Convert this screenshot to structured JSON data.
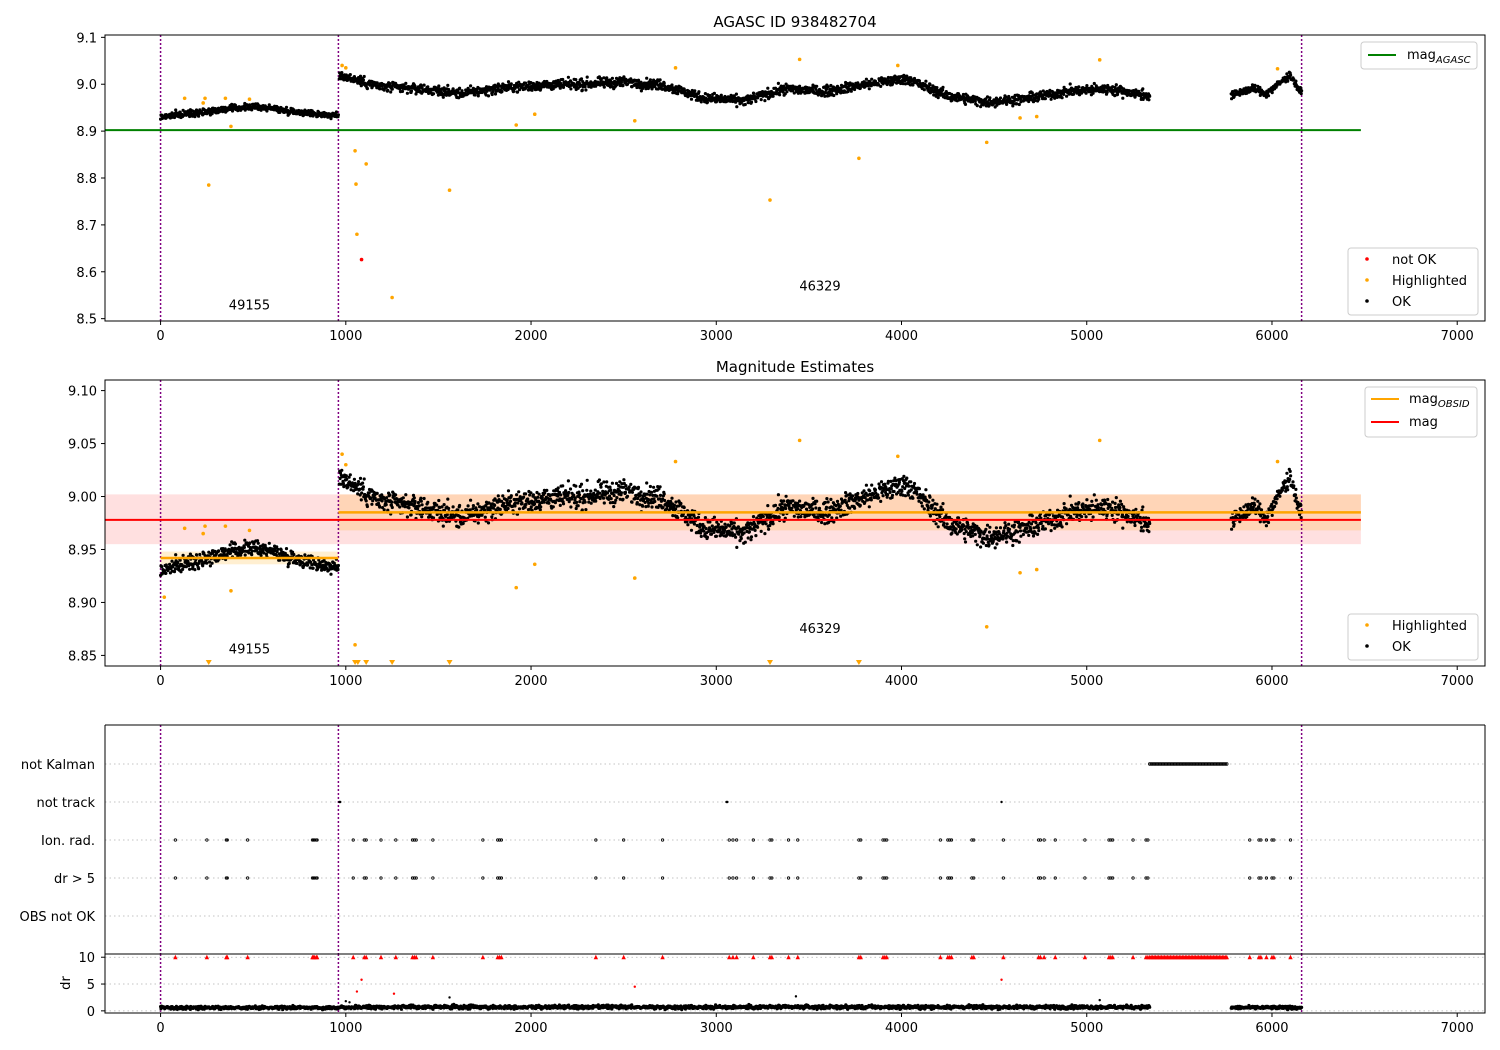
{
  "chart_data": [
    {
      "type": "scatter",
      "title": "AGASC ID 938482704",
      "xlim": [
        -300,
        7150
      ],
      "ylim": [
        8.495,
        9.105
      ],
      "xticks": [
        0,
        1000,
        2000,
        3000,
        4000,
        5000,
        6000,
        7000
      ],
      "yticks": [
        8.5,
        8.6,
        8.7,
        8.8,
        8.9,
        9.0,
        9.1
      ],
      "ytick_labels": [
        "8.5",
        "8.6",
        "8.7",
        "8.8",
        "8.9",
        "9.0",
        "9.1"
      ],
      "hline": {
        "name": "mag_AGASC",
        "y": 8.902,
        "x0": -300,
        "x1": 6480,
        "color": "#008000"
      },
      "obs_boundaries": [
        0,
        960,
        6160
      ],
      "obs_labels": [
        {
          "text": "49155",
          "x": 480,
          "y": 8.52
        },
        {
          "text": "46329",
          "x": 3560,
          "y": 8.56
        }
      ],
      "legend_top": {
        "label_main": "mag",
        "label_sub": "AGASC",
        "color": "#008000"
      },
      "legend_bottom": [
        {
          "label": "not OK",
          "color": "#ff0000"
        },
        {
          "label": "Highlighted",
          "color": "#ffa500"
        },
        {
          "label": "OK",
          "color": "#000000"
        }
      ],
      "ok_segments": [
        {
          "x0": 0,
          "x1": 960,
          "y": [
            8.93,
            8.935,
            8.94,
            8.944,
            8.948,
            8.952,
            8.95,
            8.944,
            8.94,
            8.936,
            8.932
          ],
          "noise": 0.011
        },
        {
          "x0": 965,
          "x1": 5340,
          "y": [
            9.02,
            8.995,
            8.99,
            8.98,
            8.992,
            8.998,
            9.0,
            9.005,
            8.998,
            8.97,
            8.965,
            8.99,
            8.985,
            9.0,
            9.012,
            8.975,
            8.962,
            8.97,
            8.985,
            8.99,
            8.975
          ],
          "noise": 0.017
        },
        {
          "x0": 5780,
          "x1": 6160,
          "y": [
            8.975,
            8.985,
            8.99,
            8.98,
            9.0,
            9.02,
            8.98
          ],
          "noise": 0.013
        }
      ],
      "highlighted": [
        [
          130,
          8.97
        ],
        [
          230,
          8.96
        ],
        [
          240,
          8.97
        ],
        [
          260,
          8.785
        ],
        [
          350,
          8.97
        ],
        [
          380,
          8.91
        ],
        [
          480,
          8.968
        ],
        [
          980,
          9.04
        ],
        [
          1000,
          9.035
        ],
        [
          1050,
          8.858
        ],
        [
          1055,
          8.787
        ],
        [
          1060,
          8.68
        ],
        [
          1110,
          8.83
        ],
        [
          1250,
          8.545
        ],
        [
          1560,
          8.774
        ],
        [
          1920,
          8.913
        ],
        [
          2020,
          8.936
        ],
        [
          2560,
          8.922
        ],
        [
          2780,
          9.035
        ],
        [
          3290,
          8.753
        ],
        [
          3450,
          9.053
        ],
        [
          3770,
          8.842
        ],
        [
          3980,
          9.04
        ],
        [
          4460,
          8.876
        ],
        [
          4640,
          8.928
        ],
        [
          4730,
          8.931
        ],
        [
          5070,
          9.052
        ],
        [
          6030,
          9.033
        ]
      ],
      "not_ok": [
        [
          1085,
          8.626
        ]
      ]
    },
    {
      "type": "scatter",
      "title": "Magnitude Estimates",
      "xlim": [
        -300,
        7150
      ],
      "ylim": [
        8.84,
        9.11
      ],
      "xticks": [
        0,
        1000,
        2000,
        3000,
        4000,
        5000,
        6000,
        7000
      ],
      "yticks": [
        8.85,
        8.9,
        8.95,
        9.0,
        9.05,
        9.1
      ],
      "ytick_labels": [
        "8.85",
        "8.90",
        "8.95",
        "9.00",
        "9.05",
        "9.10"
      ],
      "mag": {
        "y": 8.978,
        "band": [
          8.955,
          9.002
        ],
        "x0": -300,
        "x1": 6480,
        "color": "#ff0000"
      },
      "mag_obsid": [
        {
          "x0": 0,
          "x1": 960,
          "y": 8.942,
          "band": [
            8.936,
            8.948
          ]
        },
        {
          "x0": 960,
          "x1": 6480,
          "y": 8.985,
          "band": [
            8.968,
            9.002
          ]
        }
      ],
      "obs_boundaries": [
        0,
        960,
        6160
      ],
      "obs_labels": [
        {
          "text": "49155",
          "x": 480,
          "y": 8.852
        },
        {
          "text": "46329",
          "x": 3560,
          "y": 8.871
        }
      ],
      "legend_top": [
        {
          "label_main": "mag",
          "label_sub": "OBSID",
          "color": "#ffa500"
        },
        {
          "label_main": "mag",
          "label_sub": "",
          "color": "#ff0000"
        }
      ],
      "legend_bottom": [
        {
          "label": "Highlighted",
          "color": "#ffa500"
        },
        {
          "label": "OK",
          "color": "#000000"
        }
      ],
      "ok_segments": [
        {
          "x0": 0,
          "x1": 960,
          "y": [
            8.93,
            8.935,
            8.94,
            8.944,
            8.948,
            8.952,
            8.95,
            8.944,
            8.94,
            8.936,
            8.932
          ],
          "noise": 0.011
        },
        {
          "x0": 965,
          "x1": 5340,
          "y": [
            9.02,
            8.995,
            8.99,
            8.98,
            8.992,
            8.998,
            9.0,
            9.005,
            8.998,
            8.97,
            8.965,
            8.99,
            8.985,
            9.0,
            9.012,
            8.975,
            8.962,
            8.97,
            8.985,
            8.99,
            8.975
          ],
          "noise": 0.017
        },
        {
          "x0": 5780,
          "x1": 6160,
          "y": [
            8.975,
            8.985,
            8.99,
            8.98,
            9.0,
            9.02,
            8.98
          ],
          "noise": 0.013
        }
      ],
      "highlighted": [
        [
          20,
          8.905
        ],
        [
          130,
          8.97
        ],
        [
          230,
          8.965
        ],
        [
          240,
          8.972
        ],
        [
          350,
          8.972
        ],
        [
          380,
          8.911
        ],
        [
          480,
          8.968
        ],
        [
          980,
          9.04
        ],
        [
          1000,
          9.03
        ],
        [
          1050,
          8.86
        ],
        [
          1920,
          8.914
        ],
        [
          2020,
          8.936
        ],
        [
          2560,
          8.923
        ],
        [
          2780,
          9.033
        ],
        [
          3450,
          9.053
        ],
        [
          3980,
          9.038
        ],
        [
          4460,
          8.877
        ],
        [
          4640,
          8.928
        ],
        [
          4730,
          8.931
        ],
        [
          5070,
          9.053
        ],
        [
          6030,
          9.033
        ]
      ],
      "below_range": [
        260,
        1050,
        1065,
        1110,
        1250,
        1560,
        3290,
        3770
      ]
    },
    {
      "type": "scatter",
      "title": "",
      "xlim": [
        -300,
        7150
      ],
      "xticks": [
        0,
        1000,
        2000,
        3000,
        4000,
        5000,
        6000,
        7000
      ],
      "categories": [
        "not Kalman",
        "not track",
        "Ion. rad.",
        "dr > 5",
        "OBS not OK"
      ],
      "obs_boundaries": [
        0,
        960,
        6160
      ],
      "not_kalman_range": [
        5340,
        5760
      ],
      "not_track": [
        965,
        970,
        3055,
        3060,
        4540
      ],
      "flag_times": [
        80,
        250,
        355,
        360,
        470,
        820,
        825,
        830,
        840,
        845,
        1040,
        1100,
        1110,
        1190,
        1270,
        1360,
        1370,
        1380,
        1470,
        1740,
        1820,
        1830,
        1840,
        2350,
        2500,
        2710,
        3070,
        3090,
        3110,
        3200,
        3290,
        3300,
        3390,
        3440,
        3770,
        3780,
        3900,
        3910,
        3920,
        4210,
        4250,
        4260,
        4270,
        4380,
        4390,
        4550,
        4740,
        4750,
        4770,
        4830,
        4990,
        5120,
        5130,
        5140,
        5250,
        5320,
        5330,
        5880,
        5930,
        5940,
        5970,
        6000,
        6010,
        6100
      ]
    },
    {
      "type": "scatter",
      "title": "",
      "ylabel": "dr",
      "xlim": [
        -300,
        7150
      ],
      "ylim": [
        -0.4,
        10.6
      ],
      "xticks": [
        0,
        1000,
        2000,
        3000,
        4000,
        5000,
        6000,
        7000
      ],
      "yticks": [
        0,
        5,
        10
      ],
      "obs_boundaries": [
        0,
        960,
        6160
      ],
      "ok_segments": [
        {
          "x0": 0,
          "x1": 960,
          "mean": 0.6,
          "noise": 0.35
        },
        {
          "x0": 965,
          "x1": 5340,
          "mean": 0.7,
          "noise": 0.4
        },
        {
          "x0": 5780,
          "x1": 6160,
          "mean": 0.6,
          "noise": 0.35
        }
      ],
      "red_points": [
        [
          1060,
          3.6
        ],
        [
          1085,
          5.8
        ],
        [
          1260,
          3.2
        ],
        [
          2560,
          4.5
        ],
        [
          4540,
          5.8
        ]
      ],
      "black_points": [
        [
          1000,
          1.8
        ],
        [
          1020,
          1.6
        ],
        [
          1560,
          2.5
        ],
        [
          3430,
          2.7
        ],
        [
          5070,
          2.0
        ]
      ],
      "clipped_threshold": 10
    }
  ],
  "axis_labels": {
    "x_ticks": [
      "0",
      "1000",
      "2000",
      "3000",
      "4000",
      "5000",
      "6000",
      "7000"
    ]
  }
}
